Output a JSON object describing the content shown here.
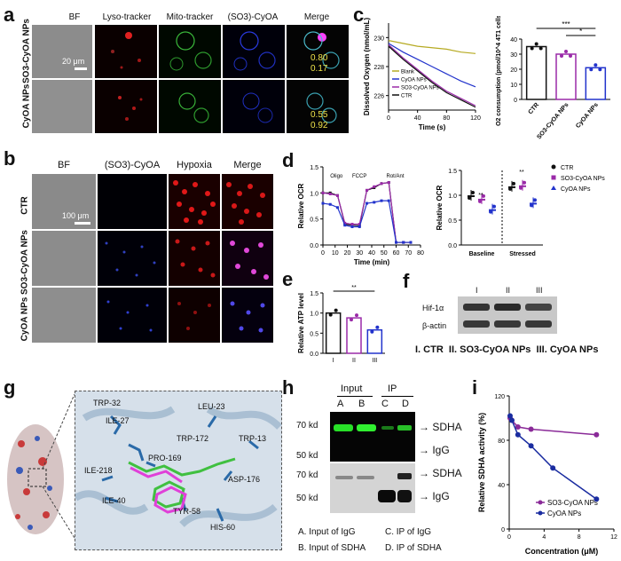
{
  "panel_a": {
    "label": "a",
    "columns": [
      "BF",
      "Lyso-tracker",
      "Mito-tracker",
      "(SO3)-CyOA",
      "Merge"
    ],
    "rows": [
      "SO3-CyOA NPs",
      "CyOA NPs"
    ],
    "scale_bar": "20 μm",
    "coefficients": [
      [
        "0.80",
        "0.17"
      ],
      [
        "0.55",
        "0.92"
      ]
    ]
  },
  "panel_b": {
    "label": "b",
    "columns": [
      "BF",
      "(SO3)-CyOA",
      "Hypoxia",
      "Merge"
    ],
    "rows": [
      "CTR",
      "SO3-CyOA NPs",
      "CyOA NPs"
    ],
    "scale_bar": "100 μm"
  },
  "panel_c": {
    "label": "c",
    "chart_data": [
      {
        "type": "line",
        "ylabel": "Dissolved Oxygen (nmol/mL)",
        "xlabel": "Time (s)",
        "xlim": [
          0,
          120
        ],
        "ylim": [
          225,
          231
        ],
        "xticks": [
          "0",
          "40",
          "80",
          "120"
        ],
        "yticks": [
          "226",
          "228",
          "230"
        ],
        "series": [
          {
            "name": "Blank",
            "color": "#b6aa22",
            "x": [
              0,
              20,
              40,
              60,
              80,
              100,
              120
            ],
            "y": [
              229.8,
              229.6,
              229.4,
              229.3,
              229.2,
              229.0,
              228.9
            ]
          },
          {
            "name": "CyOA NPs",
            "color": "#2233cc",
            "x": [
              0,
              20,
              40,
              60,
              80,
              100,
              120
            ],
            "y": [
              229.6,
              229.0,
              228.5,
              228.0,
              227.5,
              227.0,
              226.6
            ]
          },
          {
            "name": "SO3-CyOA NPs",
            "color": "#9a2aa8",
            "x": [
              0,
              20,
              40,
              60,
              80,
              100,
              120
            ],
            "y": [
              229.5,
              228.6,
              227.8,
              227.0,
              226.3,
              225.8,
              225.3
            ]
          },
          {
            "name": "CTR",
            "color": "#111111",
            "x": [
              0,
              20,
              40,
              60,
              80,
              100,
              120
            ],
            "y": [
              229.4,
              228.5,
              227.7,
              226.9,
              226.2,
              225.7,
              225.2
            ]
          }
        ]
      },
      {
        "type": "bar",
        "ylabel": "O2 consumption (pmol/10^4 4T1 cells)",
        "categories": [
          "CTR",
          "SO3-CyOA NPs",
          "CyOA NPs"
        ],
        "values": [
          35,
          30,
          21
        ],
        "colors": [
          "#111111",
          "#9a2aa8",
          "#2233cc"
        ],
        "ylim": [
          0,
          40
        ],
        "yticks": [
          "0",
          "10",
          "20",
          "30",
          "40"
        ],
        "significance": [
          "***",
          "*"
        ]
      }
    ]
  },
  "panel_d": {
    "label": "d",
    "chart_data": [
      {
        "type": "line",
        "ylabel": "Relative OCR",
        "xlabel": "Time (min)",
        "xlim": [
          0,
          80
        ],
        "ylim": [
          0,
          1.5
        ],
        "xticks": [
          "0",
          "10",
          "20",
          "30",
          "40",
          "50",
          "60",
          "70",
          "80"
        ],
        "yticks": [
          "0.0",
          "0.5",
          "1.0",
          "1.5"
        ],
        "annotations": [
          "Oligo",
          "FCCP",
          "Rot/Ant"
        ],
        "series": [
          {
            "name": "CTR",
            "color": "#111111",
            "x": [
              0,
              6,
              12,
              18,
              24,
              30,
              36,
              42,
              48,
              54,
              60,
              66,
              72
            ],
            "y": [
              1.0,
              1.0,
              0.95,
              0.4,
              0.38,
              0.37,
              1.05,
              1.1,
              1.18,
              1.2,
              0.05,
              0.05,
              0.05
            ]
          },
          {
            "name": "SO3-CyOA NPs",
            "color": "#9a2aa8",
            "x": [
              0,
              6,
              12,
              18,
              24,
              30,
              36,
              42,
              48,
              54,
              60,
              66,
              72
            ],
            "y": [
              1.0,
              0.98,
              0.95,
              0.42,
              0.4,
              0.4,
              1.05,
              1.12,
              1.18,
              1.2,
              0.05,
              0.05,
              0.05
            ]
          },
          {
            "name": "CyOA NPs",
            "color": "#2233cc",
            "x": [
              0,
              6,
              12,
              18,
              24,
              30,
              36,
              42,
              48,
              54,
              60,
              66,
              72
            ],
            "y": [
              0.8,
              0.78,
              0.72,
              0.38,
              0.35,
              0.35,
              0.8,
              0.82,
              0.85,
              0.85,
              0.05,
              0.05,
              0.05
            ]
          }
        ]
      },
      {
        "type": "scatter",
        "ylabel": "Relative OCR",
        "categories": [
          "Baseline",
          "Stressed"
        ],
        "ylim": [
          0,
          1.5
        ],
        "yticks": [
          "0.0",
          "0.5",
          "1.0",
          "1.5"
        ],
        "series": [
          {
            "name": "CTR",
            "color": "#111111",
            "values": [
              1.0,
              1.18
            ]
          },
          {
            "name": "SO3-CyOA NPs",
            "color": "#9a2aa8",
            "values": [
              0.93,
              1.2
            ]
          },
          {
            "name": "CyOA NPs",
            "color": "#2233cc",
            "values": [
              0.72,
              0.85
            ]
          }
        ],
        "significance": [
          "**",
          "**"
        ]
      }
    ]
  },
  "panel_e": {
    "label": "e",
    "chart_data": {
      "type": "bar",
      "ylabel": "Relative ATP level",
      "categories": [
        "I",
        "II",
        "III"
      ],
      "values": [
        1.0,
        0.88,
        0.58
      ],
      "colors": [
        "#111111",
        "#9a2aa8",
        "#2233cc"
      ],
      "ylim": [
        0,
        1.5
      ],
      "yticks": [
        "0.0",
        "0.5",
        "1.0",
        "1.5"
      ],
      "significance": [
        "**"
      ]
    }
  },
  "panel_f": {
    "label": "f",
    "lanes": [
      "I",
      "II",
      "III"
    ],
    "bands": [
      "Hif-1α",
      "β-actin"
    ],
    "legend": [
      "I. CTR",
      "II. SO3-CyOA NPs",
      "III. CyOA NPs"
    ]
  },
  "panel_g": {
    "label": "g",
    "residues": [
      "TRP-32",
      "ILE-27",
      "LEU-23",
      "TRP-172",
      "TRP-13",
      "PRO-169",
      "ILE-218",
      "ASP-176",
      "ILE-40",
      "TYR-58",
      "HIS-60"
    ]
  },
  "panel_h": {
    "label": "h",
    "groups": [
      "Input",
      "IP"
    ],
    "lanes": [
      "A",
      "B",
      "C",
      "D"
    ],
    "markers": [
      "70 kd",
      "50 kd",
      "70 kd",
      "50 kd"
    ],
    "bands": [
      "SDHA",
      "IgG",
      "SDHA",
      "IgG"
    ],
    "legend": [
      "A.  Input of IgG",
      "C.  IP of IgG",
      "B.  Input of SDHA",
      "D.  IP of SDHA"
    ]
  },
  "panel_i": {
    "label": "i",
    "chart_data": {
      "type": "line",
      "ylabel": "Relative SDHA activity (%)",
      "xlabel": "Concentration  (μM)",
      "xlim": [
        0,
        12
      ],
      "ylim": [
        0,
        120
      ],
      "xticks": [
        "0",
        "4",
        "8",
        "12"
      ],
      "yticks": [
        "0",
        "40",
        "80",
        "120"
      ],
      "series": [
        {
          "name": "SO3-CyOA NPs",
          "color": "#8a2a98",
          "x": [
            0.1,
            0.3,
            1,
            2.5,
            10
          ],
          "y": [
            100,
            98,
            92,
            90,
            85
          ]
        },
        {
          "name": "CyOA NPs",
          "color": "#1a2ca0",
          "x": [
            0.1,
            0.3,
            1,
            2.5,
            5,
            10
          ],
          "y": [
            102,
            98,
            85,
            75,
            55,
            27
          ]
        }
      ]
    }
  }
}
